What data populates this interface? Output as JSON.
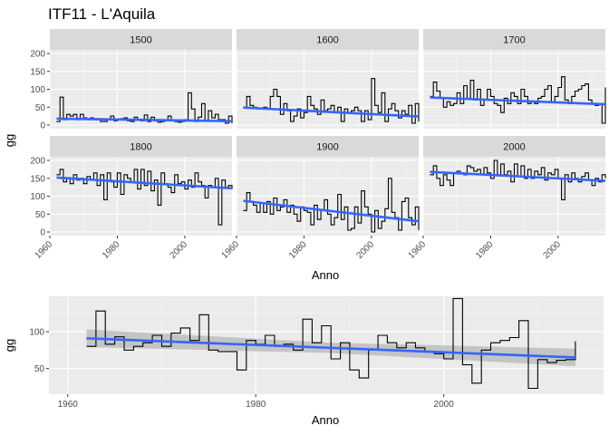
{
  "title": "ITF11 - L'Aquila",
  "colors": {
    "panel_bg": "#ebebeb",
    "grid_major": "#ffffff",
    "strip_bg": "#d9d9d9",
    "step_line": "#000000",
    "trend_line": "#3366ff",
    "ci_band": "#bdbdbd"
  },
  "chart_data": [
    {
      "type": "line",
      "subtype": "step",
      "facets": [
        "1500",
        "1600",
        "1700",
        "1800",
        "1900",
        "2000"
      ],
      "xlabel": "Anno",
      "ylabel": "gg",
      "xlim": [
        1960,
        2014
      ],
      "xticks": [
        1960,
        1980,
        2000
      ],
      "ylim": [
        0,
        200
      ],
      "yticks": [
        0,
        50,
        100,
        150,
        200
      ],
      "grid": true,
      "trend": "linear",
      "series": [
        {
          "facet": "1500",
          "x": [
            1962,
            1963,
            1964,
            1965,
            1966,
            1967,
            1968,
            1969,
            1970,
            1971,
            1972,
            1973,
            1974,
            1975,
            1976,
            1977,
            1978,
            1979,
            1980,
            1981,
            1982,
            1983,
            1984,
            1985,
            1986,
            1987,
            1988,
            1989,
            1990,
            1991,
            1992,
            1993,
            1994,
            1995,
            1996,
            1997,
            1998,
            1999,
            2000,
            2001,
            2002,
            2003,
            2004,
            2005,
            2006,
            2007,
            2008,
            2009,
            2010,
            2011,
            2012,
            2013,
            2014
          ],
          "y": [
            10,
            78,
            15,
            30,
            25,
            30,
            15,
            30,
            20,
            15,
            20,
            15,
            18,
            10,
            10,
            15,
            25,
            12,
            15,
            18,
            20,
            12,
            10,
            22,
            15,
            12,
            28,
            10,
            22,
            12,
            8,
            10,
            12,
            25,
            15,
            10,
            8,
            10,
            15,
            90,
            45,
            10,
            22,
            60,
            12,
            40,
            20,
            30,
            15,
            15,
            5,
            25,
            5
          ],
          "trend": [
            18,
            11
          ]
        },
        {
          "facet": "1600",
          "x": [
            1962,
            1963,
            1964,
            1965,
            1966,
            1967,
            1968,
            1969,
            1970,
            1971,
            1972,
            1973,
            1974,
            1975,
            1976,
            1977,
            1978,
            1979,
            1980,
            1981,
            1982,
            1983,
            1984,
            1985,
            1986,
            1987,
            1988,
            1989,
            1990,
            1991,
            1992,
            1993,
            1994,
            1995,
            1996,
            1997,
            1998,
            1999,
            2000,
            2001,
            2002,
            2003,
            2004,
            2005,
            2006,
            2007,
            2008,
            2009,
            2010,
            2011,
            2012,
            2013,
            2014
          ],
          "y": [
            50,
            80,
            55,
            50,
            45,
            48,
            50,
            45,
            80,
            100,
            80,
            30,
            60,
            40,
            10,
            25,
            45,
            20,
            35,
            80,
            55,
            45,
            30,
            70,
            40,
            45,
            55,
            35,
            50,
            10,
            45,
            35,
            40,
            50,
            40,
            10,
            40,
            15,
            130,
            55,
            35,
            90,
            10,
            45,
            60,
            40,
            20,
            40,
            30,
            55,
            5,
            60,
            10
          ],
          "trend": [
            49,
            24
          ]
        },
        {
          "facet": "1700",
          "x": [
            1962,
            1963,
            1964,
            1965,
            1966,
            1967,
            1968,
            1969,
            1970,
            1971,
            1972,
            1973,
            1974,
            1975,
            1976,
            1977,
            1978,
            1979,
            1980,
            1981,
            1982,
            1983,
            1984,
            1985,
            1986,
            1987,
            1988,
            1989,
            1990,
            1991,
            1992,
            1993,
            1994,
            1995,
            1996,
            1997,
            1998,
            1999,
            2000,
            2001,
            2002,
            2003,
            2004,
            2005,
            2006,
            2007,
            2008,
            2009,
            2010,
            2011,
            2012,
            2013,
            2014
          ],
          "y": [
            80,
            120,
            95,
            75,
            50,
            65,
            55,
            60,
            90,
            60,
            110,
            75,
            125,
            70,
            100,
            55,
            70,
            100,
            80,
            60,
            55,
            35,
            75,
            60,
            90,
            80,
            60,
            100,
            80,
            60,
            65,
            60,
            75,
            80,
            100,
            110,
            65,
            80,
            105,
            135,
            70,
            60,
            80,
            95,
            100,
            110,
            115,
            70,
            60,
            55,
            60,
            5,
            105
          ],
          "trend": [
            77,
            58
          ]
        },
        {
          "facet": "1800",
          "x": [
            1962,
            1963,
            1964,
            1965,
            1966,
            1967,
            1968,
            1969,
            1970,
            1971,
            1972,
            1973,
            1974,
            1975,
            1976,
            1977,
            1978,
            1979,
            1980,
            1981,
            1982,
            1983,
            1984,
            1985,
            1986,
            1987,
            1988,
            1989,
            1990,
            1991,
            1992,
            1993,
            1994,
            1995,
            1996,
            1997,
            1998,
            1999,
            2000,
            2001,
            2002,
            2003,
            2004,
            2005,
            2006,
            2007,
            2008,
            2009,
            2010,
            2011,
            2012,
            2013,
            2014
          ],
          "y": [
            160,
            175,
            140,
            150,
            135,
            160,
            145,
            150,
            135,
            155,
            145,
            165,
            130,
            160,
            90,
            165,
            140,
            125,
            165,
            105,
            160,
            150,
            140,
            175,
            120,
            175,
            130,
            170,
            115,
            145,
            75,
            165,
            135,
            125,
            110,
            160,
            135,
            140,
            120,
            145,
            125,
            165,
            140,
            130,
            95,
            130,
            125,
            150,
            20,
            145,
            125,
            130,
            120
          ],
          "trend": [
            152,
            122
          ]
        },
        {
          "facet": "1900",
          "x": [
            1962,
            1963,
            1964,
            1965,
            1966,
            1967,
            1968,
            1969,
            1970,
            1971,
            1972,
            1973,
            1974,
            1975,
            1976,
            1977,
            1978,
            1979,
            1980,
            1981,
            1982,
            1983,
            1984,
            1985,
            1986,
            1987,
            1988,
            1989,
            1990,
            1991,
            1992,
            1993,
            1994,
            1995,
            1996,
            1997,
            1998,
            1999,
            2000,
            2001,
            2002,
            2003,
            2004,
            2005,
            2006,
            2007,
            2008,
            2009,
            2010,
            2011,
            2012,
            2013,
            2014
          ],
          "y": [
            60,
            110,
            85,
            75,
            55,
            80,
            55,
            85,
            50,
            95,
            60,
            70,
            90,
            55,
            75,
            50,
            30,
            70,
            60,
            55,
            20,
            75,
            35,
            60,
            90,
            50,
            20,
            40,
            105,
            35,
            70,
            5,
            10,
            70,
            25,
            115,
            70,
            50,
            0,
            60,
            10,
            30,
            65,
            150,
            55,
            40,
            5,
            85,
            95,
            40,
            20,
            70,
            5
          ],
          "trend": [
            87,
            30
          ]
        },
        {
          "facet": "2000",
          "x": [
            1962,
            1963,
            1964,
            1965,
            1966,
            1967,
            1968,
            1969,
            1970,
            1971,
            1972,
            1973,
            1974,
            1975,
            1976,
            1977,
            1978,
            1979,
            1980,
            1981,
            1982,
            1983,
            1984,
            1985,
            1986,
            1987,
            1988,
            1989,
            1990,
            1991,
            1992,
            1993,
            1994,
            1995,
            1996,
            1997,
            1998,
            1999,
            2000,
            2001,
            2002,
            2003,
            2004,
            2005,
            2006,
            2007,
            2008,
            2009,
            2010,
            2011,
            2012,
            2013,
            2014
          ],
          "y": [
            160,
            185,
            150,
            130,
            160,
            145,
            130,
            165,
            170,
            165,
            160,
            185,
            180,
            170,
            175,
            160,
            180,
            165,
            150,
            200,
            160,
            190,
            160,
            170,
            140,
            190,
            155,
            185,
            150,
            175,
            150,
            170,
            160,
            180,
            145,
            165,
            160,
            175,
            150,
            90,
            160,
            140,
            165,
            150,
            140,
            155,
            165,
            145,
            130,
            150,
            140,
            160,
            150
          ],
          "trend": [
            168,
            143
          ]
        }
      ]
    },
    {
      "type": "line",
      "subtype": "step",
      "xlabel": "Anno",
      "ylabel": "gg",
      "xlim": [
        1958,
        2017
      ],
      "xticks": [
        1960,
        1980,
        2000
      ],
      "ylim": [
        15,
        148
      ],
      "yticks": [
        50,
        100
      ],
      "grid": true,
      "trend": "linear",
      "trend_ci": true,
      "series": [
        {
          "x": [
            1962,
            1963,
            1964,
            1965,
            1966,
            1967,
            1968,
            1969,
            1970,
            1971,
            1972,
            1973,
            1974,
            1975,
            1976,
            1977,
            1978,
            1979,
            1980,
            1981,
            1982,
            1983,
            1984,
            1985,
            1986,
            1987,
            1988,
            1989,
            1990,
            1991,
            1992,
            1993,
            1994,
            1995,
            1996,
            1997,
            1998,
            1999,
            2000,
            2001,
            2002,
            2003,
            2004,
            2005,
            2006,
            2007,
            2008,
            2009,
            2010,
            2011,
            2012,
            2013,
            2014
          ],
          "y": [
            80,
            128,
            83,
            93,
            75,
            80,
            85,
            95,
            80,
            98,
            105,
            88,
            123,
            75,
            73,
            73,
            48,
            88,
            83,
            95,
            80,
            83,
            75,
            117,
            85,
            108,
            63,
            85,
            48,
            37,
            75,
            95,
            85,
            78,
            85,
            78,
            73,
            70,
            63,
            145,
            55,
            30,
            75,
            85,
            88,
            92,
            115,
            23,
            62,
            58,
            61,
            62,
            87
          ],
          "trend": [
            91,
            65
          ],
          "ci_halfwidth": [
            12,
            7,
            12
          ]
        }
      ]
    }
  ]
}
